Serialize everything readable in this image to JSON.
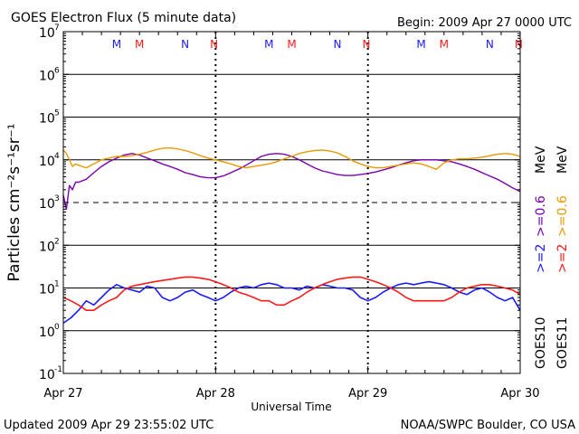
{
  "chart_data": {
    "type": "line",
    "title": "GOES Electron Flux (5 minute data)",
    "begin_text": "Begin: 2009 Apr 27 0000 UTC",
    "ylabel": "Particles cm⁻²s⁻¹sr⁻¹",
    "xlabel": "Universal Time",
    "yscale": "log",
    "ylim": [
      0.1,
      10000000
    ],
    "xlim_days": [
      0,
      3
    ],
    "grid": true,
    "y_ticks": [
      {
        "value": 0.1,
        "label": "10",
        "exp": "-1"
      },
      {
        "value": 1,
        "label": "10",
        "exp": "0"
      },
      {
        "value": 10,
        "label": "10",
        "exp": "1"
      },
      {
        "value": 100,
        "label": "10",
        "exp": "2"
      },
      {
        "value": 1000,
        "label": "10",
        "exp": "3"
      },
      {
        "value": 10000,
        "label": "10",
        "exp": "4"
      },
      {
        "value": 100000,
        "label": "10",
        "exp": "5"
      },
      {
        "value": 1000000,
        "label": "10",
        "exp": "6"
      },
      {
        "value": 10000000,
        "label": "10",
        "exp": "7"
      }
    ],
    "x_ticks": [
      {
        "day": 0,
        "label": "Apr 27"
      },
      {
        "day": 1,
        "label": "Apr 28"
      },
      {
        "day": 2,
        "label": "Apr 29"
      },
      {
        "day": 3,
        "label": "Apr 30"
      }
    ],
    "mn_markers": [
      {
        "day": 0.35,
        "letter": "M",
        "color": "#1a1aff"
      },
      {
        "day": 0.5,
        "letter": "M",
        "color": "#ff1a1a"
      },
      {
        "day": 0.8,
        "letter": "N",
        "color": "#1a1aff"
      },
      {
        "day": 0.99,
        "letter": "N",
        "color": "#ff1a1a"
      },
      {
        "day": 1.35,
        "letter": "M",
        "color": "#1a1aff"
      },
      {
        "day": 1.5,
        "letter": "M",
        "color": "#ff1a1a"
      },
      {
        "day": 1.8,
        "letter": "N",
        "color": "#1a1aff"
      },
      {
        "day": 1.99,
        "letter": "N",
        "color": "#ff1a1a"
      },
      {
        "day": 2.35,
        "letter": "M",
        "color": "#1a1aff"
      },
      {
        "day": 2.5,
        "letter": "M",
        "color": "#ff1a1a"
      },
      {
        "day": 2.8,
        "letter": "N",
        "color": "#1a1aff"
      },
      {
        "day": 2.99,
        "letter": "N",
        "color": "#ff1a1a"
      }
    ],
    "legend": {
      "groups": [
        {
          "sat": "GOES10",
          "label": ">=2",
          "color": "#1a1aff",
          "label2": ">=0.6",
          "color2": "#7a00b0"
        },
        {
          "sat": "GOES11",
          "label": ">=2",
          "color": "#ff1a1a",
          "label2": ">=0.6",
          "color2": "#e89a00",
          "unit": "MeV"
        }
      ],
      "unit_top": "MeV"
    },
    "series": [
      {
        "name": "GOES10 >=0.6 MeV",
        "color": "#7a00b0",
        "x": [
          0.0,
          0.02,
          0.04,
          0.06,
          0.08,
          0.1,
          0.15,
          0.2,
          0.25,
          0.3,
          0.35,
          0.4,
          0.45,
          0.5,
          0.55,
          0.6,
          0.65,
          0.7,
          0.75,
          0.8,
          0.85,
          0.9,
          0.95,
          1.0,
          1.05,
          1.1,
          1.15,
          1.2,
          1.25,
          1.3,
          1.35,
          1.4,
          1.45,
          1.5,
          1.55,
          1.6,
          1.65,
          1.7,
          1.75,
          1.8,
          1.85,
          1.9,
          1.95,
          2.0,
          2.05,
          2.1,
          2.15,
          2.2,
          2.25,
          2.3,
          2.35,
          2.4,
          2.45,
          2.5,
          2.55,
          2.6,
          2.65,
          2.7,
          2.75,
          2.8,
          2.85,
          2.9,
          2.95,
          3.0
        ],
        "values": [
          1500,
          700,
          2500,
          2000,
          3000,
          3000,
          3500,
          5000,
          7000,
          9000,
          11000,
          13000,
          14000,
          13000,
          11000,
          9500,
          8000,
          7000,
          6000,
          5000,
          4500,
          4000,
          3800,
          3800,
          4200,
          5000,
          6000,
          7500,
          9500,
          12000,
          13500,
          14000,
          13500,
          12000,
          10000,
          8000,
          6500,
          5500,
          5000,
          4500,
          4300,
          4300,
          4500,
          4800,
          5200,
          5800,
          6500,
          7500,
          8500,
          9500,
          10000,
          10000,
          10000,
          9500,
          9000,
          8000,
          7000,
          6000,
          5000,
          4200,
          3500,
          2800,
          2200,
          1800
        ]
      },
      {
        "name": "GOES11 >=0.6 MeV",
        "color": "#e89a00",
        "x": [
          0.0,
          0.02,
          0.04,
          0.06,
          0.08,
          0.1,
          0.15,
          0.2,
          0.25,
          0.3,
          0.35,
          0.4,
          0.45,
          0.5,
          0.55,
          0.6,
          0.65,
          0.7,
          0.75,
          0.8,
          0.85,
          0.9,
          0.95,
          1.0,
          1.05,
          1.1,
          1.15,
          1.2,
          1.25,
          1.3,
          1.35,
          1.4,
          1.45,
          1.5,
          1.55,
          1.6,
          1.65,
          1.7,
          1.75,
          1.8,
          1.85,
          1.9,
          1.95,
          2.0,
          2.05,
          2.1,
          2.15,
          2.2,
          2.25,
          2.3,
          2.35,
          2.4,
          2.45,
          2.5,
          2.55,
          2.6,
          2.65,
          2.7,
          2.75,
          2.8,
          2.85,
          2.9,
          2.95,
          3.0
        ],
        "values": [
          17000,
          14000,
          10000,
          7000,
          8000,
          7500,
          6500,
          8000,
          10000,
          11000,
          12000,
          12000,
          12500,
          13500,
          15000,
          17000,
          18500,
          19000,
          18000,
          16500,
          14500,
          12500,
          11000,
          10000,
          9000,
          8000,
          7000,
          6500,
          7000,
          7500,
          8000,
          9000,
          10500,
          12000,
          14000,
          15500,
          16500,
          17000,
          16000,
          14500,
          12000,
          9500,
          8000,
          7000,
          6500,
          6500,
          7000,
          7500,
          8000,
          8500,
          8000,
          7000,
          6000,
          8500,
          10000,
          10500,
          10500,
          11000,
          11500,
          12500,
          13500,
          14000,
          13500,
          12000
        ]
      },
      {
        "name": "GOES10 >=2 MeV",
        "color": "#1a1aff",
        "x": [
          0.0,
          0.05,
          0.1,
          0.15,
          0.2,
          0.25,
          0.3,
          0.35,
          0.4,
          0.45,
          0.5,
          0.55,
          0.6,
          0.65,
          0.7,
          0.75,
          0.8,
          0.85,
          0.9,
          0.95,
          1.0,
          1.05,
          1.1,
          1.15,
          1.2,
          1.25,
          1.3,
          1.35,
          1.4,
          1.45,
          1.5,
          1.55,
          1.6,
          1.65,
          1.7,
          1.75,
          1.8,
          1.85,
          1.9,
          1.95,
          2.0,
          2.05,
          2.1,
          2.15,
          2.2,
          2.25,
          2.3,
          2.35,
          2.4,
          2.45,
          2.5,
          2.55,
          2.6,
          2.65,
          2.7,
          2.75,
          2.8,
          2.85,
          2.9,
          2.95,
          3.0
        ],
        "values": [
          1.5,
          2,
          3,
          5,
          4,
          6,
          9,
          12,
          10,
          9,
          8,
          11,
          10,
          6,
          5,
          6,
          8,
          9,
          7,
          6,
          5,
          6,
          8,
          10,
          11,
          10,
          12,
          13,
          12,
          10,
          10,
          9,
          11,
          10,
          12,
          11,
          10,
          10,
          9,
          6,
          5,
          6,
          8,
          10,
          12,
          13,
          12,
          13,
          14,
          13,
          12,
          10,
          8,
          7,
          9,
          10,
          8,
          6,
          5,
          6,
          3
        ]
      },
      {
        "name": "GOES11 >=2 MeV",
        "color": "#ff1a1a",
        "x": [
          0.0,
          0.05,
          0.1,
          0.15,
          0.2,
          0.25,
          0.3,
          0.35,
          0.4,
          0.45,
          0.5,
          0.55,
          0.6,
          0.65,
          0.7,
          0.75,
          0.8,
          0.85,
          0.9,
          0.95,
          1.0,
          1.05,
          1.1,
          1.15,
          1.2,
          1.25,
          1.3,
          1.35,
          1.4,
          1.45,
          1.5,
          1.55,
          1.6,
          1.65,
          1.7,
          1.75,
          1.8,
          1.85,
          1.9,
          1.95,
          2.0,
          2.05,
          2.1,
          2.15,
          2.2,
          2.25,
          2.3,
          2.35,
          2.4,
          2.45,
          2.5,
          2.55,
          2.6,
          2.65,
          2.7,
          2.75,
          2.8,
          2.85,
          2.9,
          2.95,
          3.0
        ],
        "values": [
          6,
          5,
          4,
          3,
          3,
          4,
          5,
          6,
          9,
          11,
          12,
          13,
          14,
          15,
          16,
          17,
          18,
          18,
          17,
          16,
          14,
          12,
          10,
          8,
          7,
          6,
          5,
          5,
          4,
          4,
          5,
          6,
          8,
          10,
          12,
          14,
          16,
          17,
          18,
          18,
          16,
          14,
          12,
          10,
          8,
          6,
          5,
          5,
          5,
          5,
          5,
          6,
          8,
          10,
          11,
          12,
          12,
          11,
          10,
          9,
          7
        ]
      }
    ]
  },
  "footer": {
    "updated": "Updated 2009 Apr 29 23:55:02 UTC",
    "credit": "NOAA/SWPC Boulder, CO USA"
  }
}
